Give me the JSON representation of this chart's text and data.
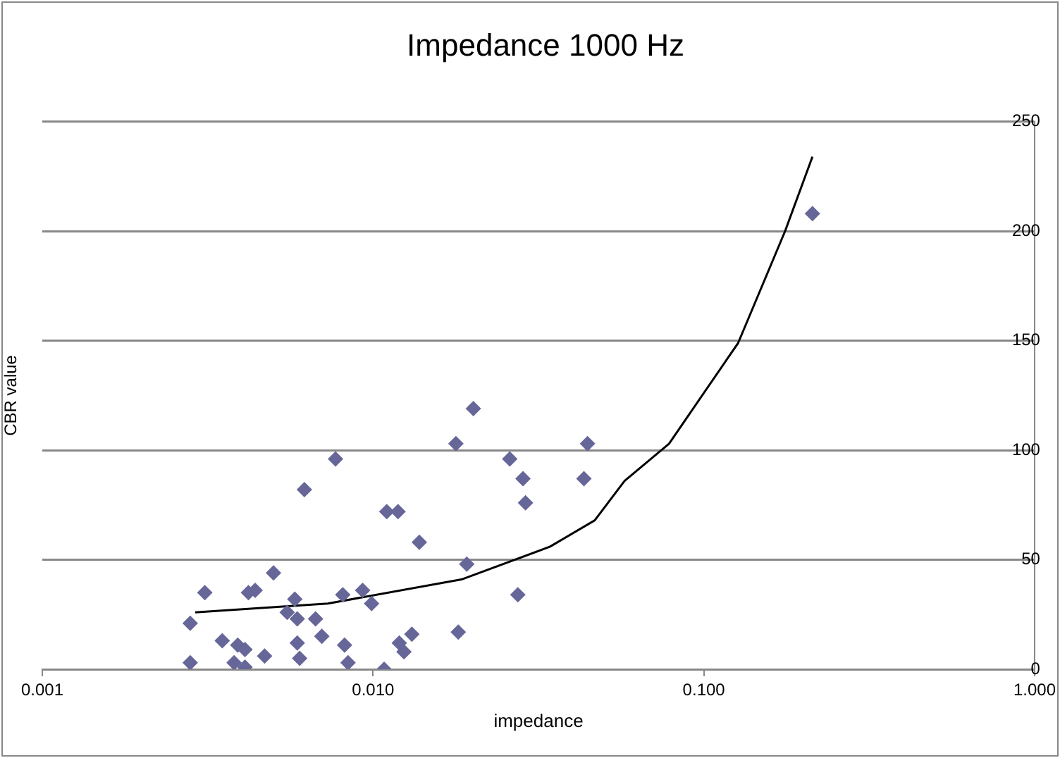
{
  "chart_data": {
    "type": "scatter",
    "title": "Impedance 1000 Hz",
    "xlabel": "impedance",
    "ylabel": "CBR value",
    "log": "x",
    "grid": "y",
    "legend": false,
    "marker": "diamond",
    "xlim": [
      0.001,
      1
    ],
    "xticks": [
      {
        "value": 0.001,
        "label": "0.001"
      },
      {
        "value": 0.01,
        "label": "0.010"
      },
      {
        "value": 0.1,
        "label": "0.100"
      },
      {
        "value": 1,
        "label": "1.000"
      }
    ],
    "ylim": [
      0,
      250
    ],
    "yticks": [
      0,
      50,
      100,
      150,
      200,
      250
    ],
    "series": [
      {
        "color": "#666699",
        "x": [
          0.0028,
          0.0031,
          0.0028,
          0.0035,
          0.0039,
          0.0041,
          0.0038,
          0.0041,
          0.0047,
          0.0042,
          0.0044,
          0.005,
          0.0058,
          0.0055,
          0.0059,
          0.0067,
          0.007,
          0.0059,
          0.006,
          0.0062,
          0.0077,
          0.011,
          0.0119,
          0.0138,
          0.0081,
          0.0093,
          0.0099,
          0.0082,
          0.0084,
          0.0108,
          0.012,
          0.0131,
          0.0124,
          0.0178,
          0.0181,
          0.0259,
          0.0284,
          0.0289,
          0.0445,
          0.0434,
          0.0192,
          0.0274,
          0.0201,
          0.213
        ],
        "values": [
          21,
          35,
          3,
          13,
          11,
          9,
          3,
          1,
          6,
          35,
          36,
          44,
          32,
          26,
          23,
          23,
          15,
          12,
          5,
          82,
          96,
          72,
          72,
          58,
          34,
          36,
          30,
          11,
          3,
          0,
          12,
          16,
          8,
          103,
          17,
          96,
          87,
          76,
          103,
          87,
          48,
          34,
          119,
          208
        ]
      },
      {
        "type": "line",
        "color": "#000000",
        "marker": "none",
        "line_style": "solid",
        "x": [
          0.0029,
          0.0073,
          0.0185,
          0.0343,
          0.0468,
          0.0576,
          0.0785,
          0.127,
          0.176,
          0.213
        ],
        "values": [
          26,
          30,
          41,
          56,
          68,
          86,
          103,
          149,
          200,
          234
        ]
      }
    ]
  }
}
